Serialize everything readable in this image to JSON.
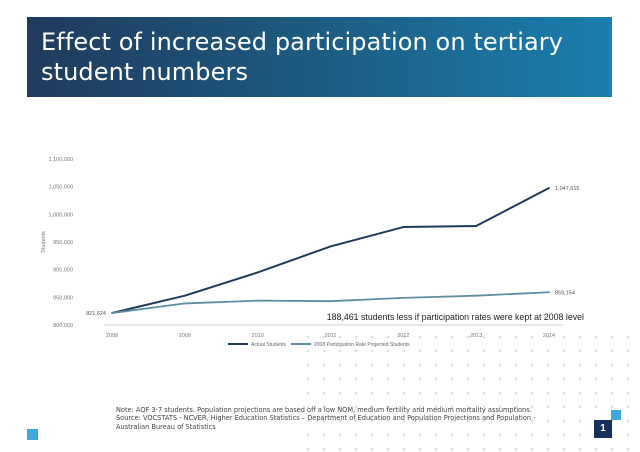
{
  "slide": {
    "title": "Effect of increased participation on tertiary student numbers",
    "note_line1": "Note: AQF 3-7 students. Population projections are based off a low NOM, medium fertility and medium mortality assumptions.",
    "note_line2": "Source: VOCSTATS - NCVER, Higher Education Statistics – Department of Education and Population Projections and Population - Australian Bureau of Statistics",
    "page_number": "1",
    "colors": {
      "banner": "#1f3b5c",
      "accent": "#3fa9dc"
    }
  },
  "chart_data": {
    "type": "line",
    "x": [
      2008,
      2009,
      2010,
      2011,
      2012,
      2013,
      2014
    ],
    "xlabel": "",
    "ylabel": "Students",
    "ylim": [
      800000,
      1100000
    ],
    "y_ticks": [
      800000,
      850000,
      900000,
      950000,
      1000000,
      1050000,
      1100000
    ],
    "grid": false,
    "legend_position": "bottom",
    "series": [
      {
        "name": "Actual Students",
        "color": "#1f3b5c",
        "values": [
          821624,
          853000,
          895000,
          942000,
          977000,
          979000,
          1047615
        ]
      },
      {
        "name": "2008 Participation Rate Projected Students",
        "color": "#5f8f9f",
        "values": [
          821624,
          839000,
          844000,
          843000,
          849000,
          853000,
          859154
        ]
      }
    ],
    "annotations": {
      "start_label": "821,624",
      "end_actual_label": "1,047,615",
      "end_projected_label": "859,154",
      "callout": "188,461 students less if participation rates were kept at 2008 level"
    }
  }
}
